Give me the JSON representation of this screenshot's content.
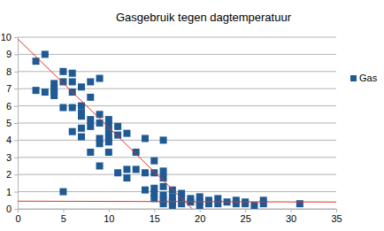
{
  "chart_data": {
    "type": "scatter",
    "title": "Gasgebruik tegen dagtemperatuur",
    "xlim": [
      0,
      35
    ],
    "xticks": [
      0,
      5,
      10,
      15,
      20,
      25,
      30,
      35
    ],
    "ylim": [
      0,
      10
    ],
    "yticks": [
      0,
      1,
      2,
      3,
      4,
      5,
      6,
      7,
      8,
      9,
      10
    ],
    "grid": true,
    "legend": "right",
    "series": [
      {
        "name": "Gas",
        "type": "scatter",
        "color": "#1f5a94",
        "marker": "square",
        "x": [
          2,
          3,
          2,
          3,
          4,
          4,
          4,
          4,
          5,
          5,
          5,
          5,
          6,
          6,
          6,
          6,
          6,
          7,
          7,
          7,
          7,
          7,
          7,
          8,
          8,
          8,
          8,
          8,
          9,
          9,
          9,
          9,
          9,
          9,
          10,
          10,
          10,
          10,
          10,
          10,
          11,
          11,
          11,
          12,
          12,
          12,
          13,
          13,
          14,
          14,
          14,
          15,
          15,
          15,
          15,
          15,
          16,
          16,
          16,
          16,
          16,
          16,
          16,
          17,
          17,
          17,
          17,
          18,
          18,
          18,
          19,
          19,
          20,
          20,
          20,
          21,
          21,
          22,
          22,
          23,
          24,
          24,
          25,
          25,
          26,
          27,
          27,
          31
        ],
        "values": [
          8.6,
          9,
          6.9,
          6.8,
          7.3,
          7,
          6.8,
          6.6,
          8,
          7.4,
          5.9,
          1,
          7.9,
          7.4,
          6.8,
          5.9,
          4.5,
          7.1,
          6,
          5.6,
          5.4,
          4.7,
          4.2,
          7.4,
          6.5,
          5.2,
          4.8,
          3.3,
          7.6,
          5.5,
          5,
          4.1,
          3.8,
          2.5,
          5.2,
          4.8,
          4.4,
          4.1,
          3.9,
          3.3,
          4.8,
          4.3,
          2.1,
          4.4,
          2.3,
          1.8,
          3.3,
          2.3,
          4.1,
          2.1,
          1.1,
          2.8,
          2.1,
          1.2,
          0.9,
          0.6,
          4,
          2.2,
          1.8,
          1.3,
          0.8,
          0.5,
          0.3,
          1.1,
          0.7,
          0.4,
          0.2,
          0.9,
          0.6,
          0.3,
          0.6,
          0.4,
          0.7,
          0.4,
          0.2,
          0.5,
          0.3,
          0.6,
          0.3,
          0.4,
          0.5,
          0.3,
          0.4,
          0.3,
          0.2,
          0.5,
          0.3,
          0.3
        ]
      },
      {
        "type": "line",
        "color": "#e0302a",
        "line_style": "solid",
        "x": [
          0,
          19.2
        ],
        "values": [
          9.9,
          0
        ]
      },
      {
        "type": "line",
        "color": "#e0302a",
        "line_style": "solid",
        "x": [
          0,
          35
        ],
        "values": [
          0.45,
          0.4
        ]
      }
    ]
  }
}
